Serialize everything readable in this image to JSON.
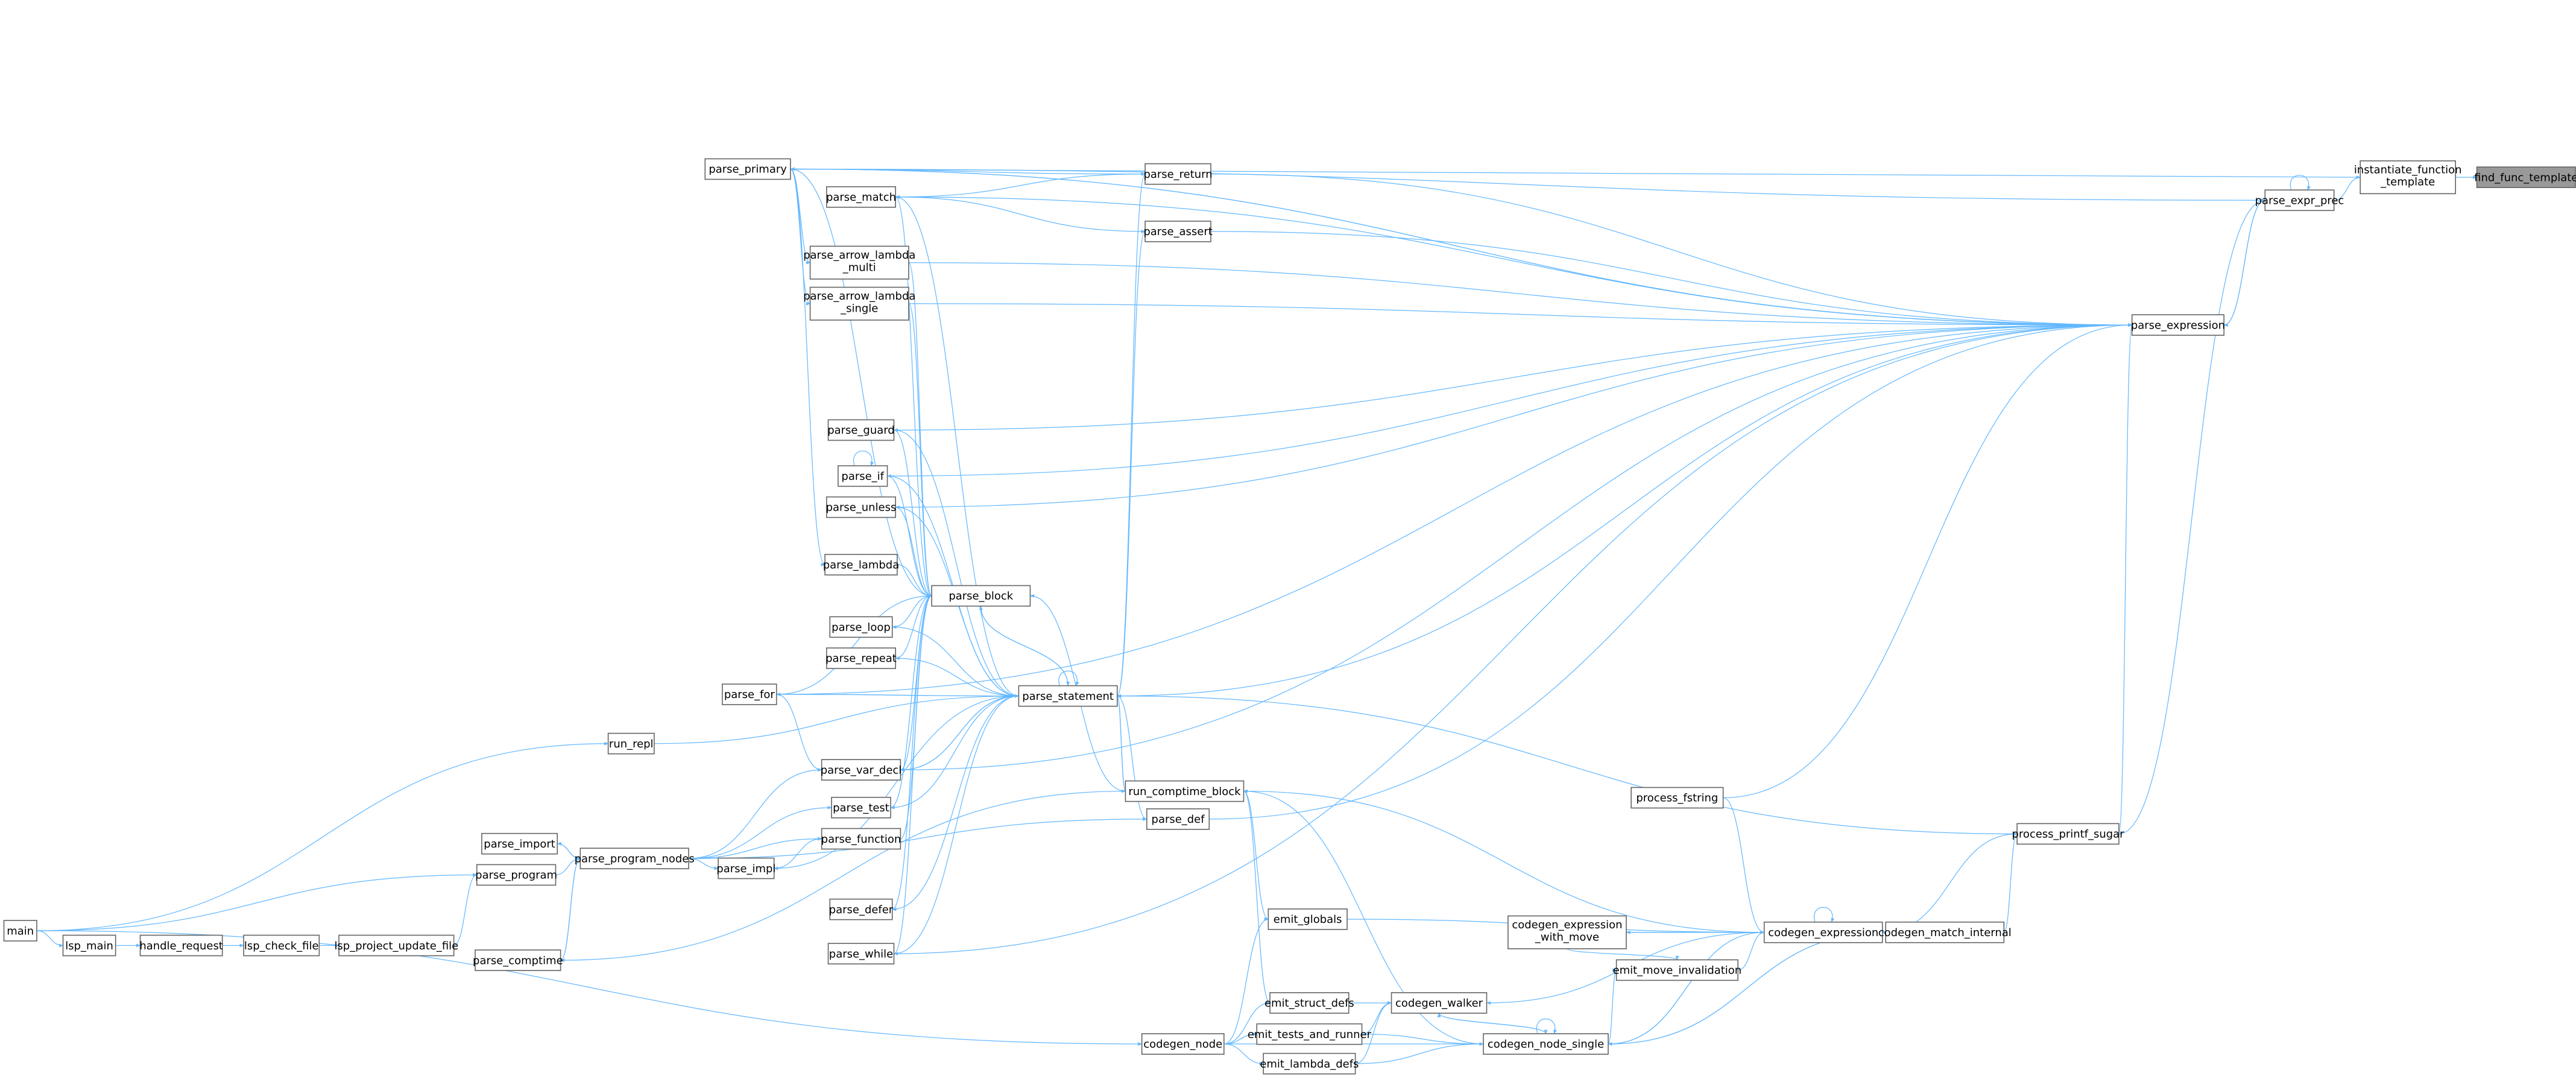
{
  "graph": {
    "kind": "caller-graph",
    "edge_color": "#63b8ff",
    "current_node_fill": "#999999",
    "current": "find_func_template",
    "nodes": [
      {
        "id": "find_func_template",
        "lines": [
          "find_func_template"
        ]
      },
      {
        "id": "instantiate_function_template",
        "lines": [
          "instantiate_function",
          "_template"
        ]
      },
      {
        "id": "parse_expr_prec",
        "lines": [
          "parse_expr_prec"
        ]
      },
      {
        "id": "parse_expression",
        "lines": [
          "parse_expression"
        ]
      },
      {
        "id": "parse_primary",
        "lines": [
          "parse_primary"
        ]
      },
      {
        "id": "parse_match",
        "lines": [
          "parse_match"
        ]
      },
      {
        "id": "parse_return",
        "lines": [
          "parse_return"
        ]
      },
      {
        "id": "parse_assert",
        "lines": [
          "parse_assert"
        ]
      },
      {
        "id": "parse_arrow_lambda_multi",
        "lines": [
          "parse_arrow_lambda",
          "_multi"
        ]
      },
      {
        "id": "parse_arrow_lambda_single",
        "lines": [
          "parse_arrow_lambda",
          "_single"
        ]
      },
      {
        "id": "parse_guard",
        "lines": [
          "parse_guard"
        ]
      },
      {
        "id": "parse_if",
        "lines": [
          "parse_if"
        ]
      },
      {
        "id": "parse_unless",
        "lines": [
          "parse_unless"
        ]
      },
      {
        "id": "parse_lambda",
        "lines": [
          "parse_lambda"
        ]
      },
      {
        "id": "parse_block",
        "lines": [
          "parse_block"
        ]
      },
      {
        "id": "parse_loop",
        "lines": [
          "parse_loop"
        ]
      },
      {
        "id": "parse_repeat",
        "lines": [
          "parse_repeat"
        ]
      },
      {
        "id": "parse_for",
        "lines": [
          "parse_for"
        ]
      },
      {
        "id": "parse_statement",
        "lines": [
          "parse_statement"
        ]
      },
      {
        "id": "run_repl",
        "lines": [
          "run_repl"
        ]
      },
      {
        "id": "parse_var_decl",
        "lines": [
          "parse_var_decl"
        ]
      },
      {
        "id": "parse_test",
        "lines": [
          "parse_test"
        ]
      },
      {
        "id": "parse_function",
        "lines": [
          "parse_function"
        ]
      },
      {
        "id": "parse_import",
        "lines": [
          "parse_import"
        ]
      },
      {
        "id": "parse_program_nodes",
        "lines": [
          "parse_program_nodes"
        ]
      },
      {
        "id": "parse_impl",
        "lines": [
          "parse_impl"
        ]
      },
      {
        "id": "parse_program",
        "lines": [
          "parse_program"
        ]
      },
      {
        "id": "main",
        "lines": [
          "main"
        ]
      },
      {
        "id": "lsp_main",
        "lines": [
          "lsp_main"
        ]
      },
      {
        "id": "handle_request",
        "lines": [
          "handle_request"
        ]
      },
      {
        "id": "lsp_check_file",
        "lines": [
          "lsp_check_file"
        ]
      },
      {
        "id": "lsp_project_update_file",
        "lines": [
          "lsp_project_update_file"
        ]
      },
      {
        "id": "parse_comptime",
        "lines": [
          "parse_comptime"
        ]
      },
      {
        "id": "parse_defer",
        "lines": [
          "parse_defer"
        ]
      },
      {
        "id": "parse_while",
        "lines": [
          "parse_while"
        ]
      },
      {
        "id": "run_comptime_block",
        "lines": [
          "run_comptime_block"
        ]
      },
      {
        "id": "parse_def",
        "lines": [
          "parse_def"
        ]
      },
      {
        "id": "process_fstring",
        "lines": [
          "process_fstring"
        ]
      },
      {
        "id": "process_printf_sugar",
        "lines": [
          "process_printf_sugar"
        ]
      },
      {
        "id": "emit_globals",
        "lines": [
          "emit_globals"
        ]
      },
      {
        "id": "codegen_expression_with_move",
        "lines": [
          "codegen_expression",
          "_with_move"
        ]
      },
      {
        "id": "codegen_expression",
        "lines": [
          "codegen_expression"
        ]
      },
      {
        "id": "codegen_match_internal",
        "lines": [
          "codegen_match_internal"
        ]
      },
      {
        "id": "emit_move_invalidation",
        "lines": [
          "emit_move_invalidation"
        ]
      },
      {
        "id": "emit_struct_defs",
        "lines": [
          "emit_struct_defs"
        ]
      },
      {
        "id": "codegen_walker",
        "lines": [
          "codegen_walker"
        ]
      },
      {
        "id": "emit_tests_and_runner",
        "lines": [
          "emit_tests_and_runner"
        ]
      },
      {
        "id": "codegen_node_single",
        "lines": [
          "codegen_node_single"
        ]
      },
      {
        "id": "codegen_node",
        "lines": [
          "codegen_node"
        ]
      },
      {
        "id": "emit_lambda_defs",
        "lines": [
          "emit_lambda_defs"
        ]
      }
    ],
    "edges": [
      [
        "instantiate_function_template",
        "find_func_template"
      ],
      [
        "parse_expr_prec",
        "instantiate_function_template"
      ],
      [
        "parse_expr_prec",
        "parse_expr_prec"
      ],
      [
        "parse_expression",
        "parse_expr_prec"
      ],
      [
        "parse_expr_prec",
        "parse_expression"
      ],
      [
        "parse_expr_prec",
        "parse_primary"
      ],
      [
        "instantiate_function_template",
        "parse_primary"
      ],
      [
        "parse_primary",
        "parse_expression"
      ],
      [
        "parse_expression",
        "parse_primary"
      ],
      [
        "parse_match",
        "parse_expression"
      ],
      [
        "parse_return",
        "parse_primary"
      ],
      [
        "parse_return",
        "parse_match"
      ],
      [
        "parse_return",
        "parse_expression"
      ],
      [
        "parse_assert",
        "parse_match"
      ],
      [
        "parse_assert",
        "parse_expression"
      ],
      [
        "parse_statement",
        "parse_return"
      ],
      [
        "parse_statement",
        "parse_assert"
      ],
      [
        "parse_primary",
        "parse_arrow_lambda_multi"
      ],
      [
        "parse_primary",
        "parse_arrow_lambda_single"
      ],
      [
        "parse_primary",
        "parse_lambda"
      ],
      [
        "parse_primary",
        "parse_block"
      ],
      [
        "parse_arrow_lambda_multi",
        "parse_expression"
      ],
      [
        "parse_arrow_lambda_multi",
        "parse_block"
      ],
      [
        "parse_arrow_lambda_single",
        "parse_expression"
      ],
      [
        "parse_arrow_lambda_single",
        "parse_block"
      ],
      [
        "parse_guard",
        "parse_expression"
      ],
      [
        "parse_guard",
        "parse_block"
      ],
      [
        "parse_statement",
        "parse_guard"
      ],
      [
        "parse_if",
        "parse_if"
      ],
      [
        "parse_if",
        "parse_expression"
      ],
      [
        "parse_if",
        "parse_block"
      ],
      [
        "parse_statement",
        "parse_if"
      ],
      [
        "parse_unless",
        "parse_expression"
      ],
      [
        "parse_unless",
        "parse_block"
      ],
      [
        "parse_statement",
        "parse_unless"
      ],
      [
        "parse_lambda",
        "parse_block"
      ],
      [
        "parse_block",
        "parse_statement"
      ],
      [
        "parse_statement",
        "parse_block"
      ],
      [
        "parse_block",
        "parse_match"
      ],
      [
        "parse_statement",
        "parse_match"
      ],
      [
        "parse_loop",
        "parse_block"
      ],
      [
        "parse_statement",
        "parse_loop"
      ],
      [
        "parse_repeat",
        "parse_block"
      ],
      [
        "parse_statement",
        "parse_repeat"
      ],
      [
        "parse_for",
        "parse_statement"
      ],
      [
        "parse_statement",
        "parse_for"
      ],
      [
        "parse_for",
        "parse_expression"
      ],
      [
        "parse_for",
        "parse_var_decl"
      ],
      [
        "parse_for",
        "parse_block"
      ],
      [
        "run_repl",
        "parse_statement"
      ],
      [
        "main",
        "run_repl"
      ],
      [
        "parse_var_decl",
        "parse_expression"
      ],
      [
        "parse_var_decl",
        "parse_statement"
      ],
      [
        "parse_statement",
        "parse_var_decl"
      ],
      [
        "parse_var_decl",
        "parse_block"
      ],
      [
        "parse_program_nodes",
        "parse_var_decl"
      ],
      [
        "parse_program_nodes",
        "parse_test"
      ],
      [
        "parse_program_nodes",
        "parse_function"
      ],
      [
        "parse_program_nodes",
        "parse_impl"
      ],
      [
        "parse_program_nodes",
        "parse_import"
      ],
      [
        "parse_import",
        "parse_program_nodes"
      ],
      [
        "parse_program",
        "parse_program_nodes"
      ],
      [
        "parse_program_nodes",
        "parse_comptime"
      ],
      [
        "parse_comptime",
        "parse_program_nodes"
      ],
      [
        "parse_test",
        "parse_block"
      ],
      [
        "parse_statement",
        "parse_test"
      ],
      [
        "parse_function",
        "parse_block"
      ],
      [
        "parse_impl",
        "parse_function"
      ],
      [
        "parse_statement",
        "parse_impl"
      ],
      [
        "parse_defer",
        "parse_block"
      ],
      [
        "parse_statement",
        "parse_defer"
      ],
      [
        "parse_while",
        "parse_block"
      ],
      [
        "parse_statement",
        "parse_while"
      ],
      [
        "parse_while",
        "parse_expression"
      ],
      [
        "parse_statement",
        "parse_statement"
      ],
      [
        "parse_statement",
        "parse_expression"
      ],
      [
        "parse_statement",
        "run_comptime_block"
      ],
      [
        "run_comptime_block",
        "parse_block"
      ],
      [
        "run_comptime_block",
        "parse_statement"
      ],
      [
        "parse_comptime",
        "run_comptime_block"
      ],
      [
        "parse_program_nodes",
        "parse_def"
      ],
      [
        "parse_def",
        "parse_expression"
      ],
      [
        "parse_statement",
        "parse_def"
      ],
      [
        "main",
        "parse_program"
      ],
      [
        "main",
        "lsp_main"
      ],
      [
        "lsp_main",
        "handle_request"
      ],
      [
        "handle_request",
        "lsp_check_file"
      ],
      [
        "lsp_check_file",
        "lsp_project_update_file"
      ],
      [
        "lsp_project_update_file",
        "parse_program"
      ],
      [
        "main",
        "codegen_node"
      ],
      [
        "codegen_node",
        "emit_globals"
      ],
      [
        "codegen_node",
        "emit_struct_defs"
      ],
      [
        "codegen_node",
        "emit_tests_and_runner"
      ],
      [
        "codegen_node",
        "emit_lambda_defs"
      ],
      [
        "codegen_node",
        "codegen_node_single"
      ],
      [
        "run_comptime_block",
        "emit_globals"
      ],
      [
        "run_comptime_block",
        "emit_struct_defs"
      ],
      [
        "emit_globals",
        "codegen_expression"
      ],
      [
        "emit_struct_defs",
        "codegen_walker"
      ],
      [
        "emit_tests_and_runner",
        "codegen_walker"
      ],
      [
        "emit_lambda_defs",
        "codegen_walker"
      ],
      [
        "emit_tests_and_runner",
        "codegen_node_single"
      ],
      [
        "emit_lambda_defs",
        "codegen_node_single"
      ],
      [
        "codegen_walker",
        "codegen_node_single"
      ],
      [
        "codegen_node_single",
        "codegen_walker"
      ],
      [
        "codegen_node_single",
        "codegen_node_single"
      ],
      [
        "codegen_node_single",
        "run_comptime_block"
      ],
      [
        "codegen_node_single",
        "emit_move_invalidation"
      ],
      [
        "codegen_node_single",
        "codegen_expression"
      ],
      [
        "codegen_expression",
        "codegen_node_single"
      ],
      [
        "codegen_expression",
        "codegen_walker"
      ],
      [
        "codegen_expression",
        "codegen_expression"
      ],
      [
        "codegen_expression",
        "codegen_expression_with_move"
      ],
      [
        "codegen_expression_with_move",
        "codegen_expression"
      ],
      [
        "codegen_expression_with_move",
        "emit_move_invalidation"
      ],
      [
        "emit_move_invalidation",
        "codegen_expression"
      ],
      [
        "codegen_expression",
        "codegen_match_internal"
      ],
      [
        "codegen_match_internal",
        "codegen_expression"
      ],
      [
        "codegen_match_internal",
        "codegen_node_single"
      ],
      [
        "codegen_node_single",
        "codegen_match_internal"
      ],
      [
        "codegen_match_internal",
        "process_printf_sugar"
      ],
      [
        "process_printf_sugar",
        "codegen_expression"
      ],
      [
        "process_fstring",
        "codegen_expression"
      ],
      [
        "process_fstring",
        "parse_expression"
      ],
      [
        "process_printf_sugar",
        "parse_expression"
      ],
      [
        "process_printf_sugar",
        "parse_expr_prec"
      ],
      [
        "parse_statement",
        "process_printf_sugar"
      ],
      [
        "run_comptime_block",
        "codegen_expression"
      ]
    ]
  }
}
